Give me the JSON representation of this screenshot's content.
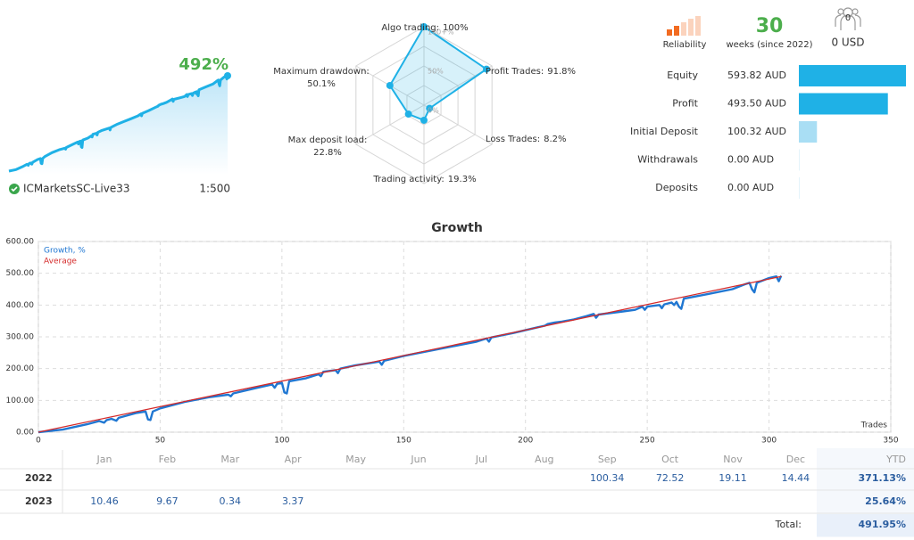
{
  "summary": {
    "growth": "492%",
    "account": "ICMarketsSC-Live33",
    "leverage": "1:500"
  },
  "radar": {
    "ticks": [
      {
        "value": 100,
        "label": "100+%"
      },
      {
        "value": 50,
        "label": "50%"
      },
      {
        "value": 0,
        "label": "0%"
      }
    ],
    "axes": [
      {
        "name": "Algo trading:",
        "value": 100,
        "label": "100%"
      },
      {
        "name": "Profit Trades:",
        "value": 91.8,
        "label": "91.8%"
      },
      {
        "name": "Loss Trades:",
        "value": 8.2,
        "label": "8.2%"
      },
      {
        "name": "Trading activity:",
        "value": 19.3,
        "label": "19.3%"
      },
      {
        "name": "Max deposit load:",
        "value": 22.8,
        "label": "22.8%"
      },
      {
        "name": "Maximum drawdown:",
        "value": 50.1,
        "label": "50.1%"
      }
    ]
  },
  "info": {
    "reliability": "Reliability",
    "weeks": 30,
    "weeks_label": "weeks (since 2022)",
    "subscribers": 0,
    "subscription": "0 USD"
  },
  "stats": [
    {
      "name": "Equity",
      "value": 593.82,
      "label": "593.82 AUD",
      "color": "#1fb1e6"
    },
    {
      "name": "Profit",
      "value": 493.5,
      "label": "493.50 AUD",
      "color": "#1fb1e6"
    },
    {
      "name": "Initial Deposit",
      "value": 100.32,
      "label": "100.32 AUD",
      "color": "#a9def4"
    },
    {
      "name": "Withdrawals",
      "value": 0,
      "label": "0.00 AUD",
      "color": "#a9def4"
    },
    {
      "name": "Deposits",
      "value": 0,
      "label": "0.00 AUD",
      "color": "#a9def4"
    }
  ],
  "chart_data": {
    "type": "line",
    "title": "Growth",
    "xlabel": "Trades",
    "xlim": [
      0,
      350
    ],
    "xticks": [
      0,
      50,
      100,
      150,
      200,
      250,
      300,
      350
    ],
    "ylim": [
      0,
      600
    ],
    "yticks": [
      {
        "value": 0,
        "label": "0.00"
      },
      {
        "value": 100,
        "label": "100.00"
      },
      {
        "value": 200,
        "label": "200.00"
      },
      {
        "value": 300,
        "label": "300.00"
      },
      {
        "value": 400,
        "label": "400.00"
      },
      {
        "value": 500,
        "label": "500.00"
      },
      {
        "value": 600,
        "label": "600.00"
      }
    ],
    "grid": true,
    "legend": "top-left",
    "series": [
      {
        "name": "Growth, %",
        "color": "#2077d2",
        "x": [
          0,
          10,
          20,
          25,
          27,
          28,
          30,
          32,
          33,
          40,
          44,
          45,
          46,
          47,
          50,
          60,
          70,
          78,
          79,
          80,
          90,
          96,
          97,
          98,
          100,
          101,
          102,
          103,
          110,
          115,
          116,
          117,
          122,
          123,
          124,
          130,
          140,
          141,
          142,
          150,
          160,
          170,
          180,
          184,
          185,
          186,
          195,
          205,
          208,
          209,
          212,
          215,
          220,
          225,
          228,
          229,
          230,
          240,
          245,
          248,
          249,
          250,
          255,
          256,
          257,
          260,
          261,
          262,
          263,
          264,
          265,
          275,
          285,
          290,
          292,
          293,
          294,
          295,
          300,
          303,
          304,
          305
        ],
        "values": [
          0,
          8,
          25,
          35,
          30,
          38,
          42,
          36,
          45,
          60,
          65,
          40,
          38,
          65,
          75,
          95,
          110,
          118,
          113,
          122,
          140,
          150,
          140,
          152,
          155,
          125,
          122,
          160,
          170,
          182,
          176,
          190,
          195,
          186,
          200,
          210,
          222,
          212,
          225,
          240,
          255,
          270,
          285,
          295,
          285,
          298,
          312,
          330,
          335,
          340,
          345,
          348,
          355,
          365,
          372,
          360,
          370,
          380,
          385,
          395,
          385,
          395,
          400,
          390,
          402,
          408,
          400,
          410,
          395,
          388,
          420,
          435,
          450,
          465,
          470,
          450,
          440,
          470,
          485,
          490,
          475,
          492
        ]
      },
      {
        "name": "Average",
        "color": "#d42a2a",
        "x": [
          0,
          305
        ],
        "values": [
          0,
          490
        ]
      }
    ]
  },
  "table": {
    "months": [
      "Jan",
      "Feb",
      "Mar",
      "Apr",
      "May",
      "Jun",
      "Jul",
      "Aug",
      "Sep",
      "Oct",
      "Nov",
      "Dec"
    ],
    "ytd_header": "YTD",
    "rows": [
      {
        "year": "2022",
        "months": [
          null,
          null,
          null,
          null,
          null,
          null,
          null,
          null,
          100.34,
          72.52,
          19.11,
          14.44
        ],
        "ytd": "371.13%"
      },
      {
        "year": "2023",
        "months": [
          10.46,
          9.67,
          0.34,
          3.37,
          null,
          null,
          null,
          null,
          null,
          null,
          null,
          null
        ],
        "ytd": "25.64%"
      }
    ],
    "total_label": "Total:",
    "total": "491.95%"
  }
}
